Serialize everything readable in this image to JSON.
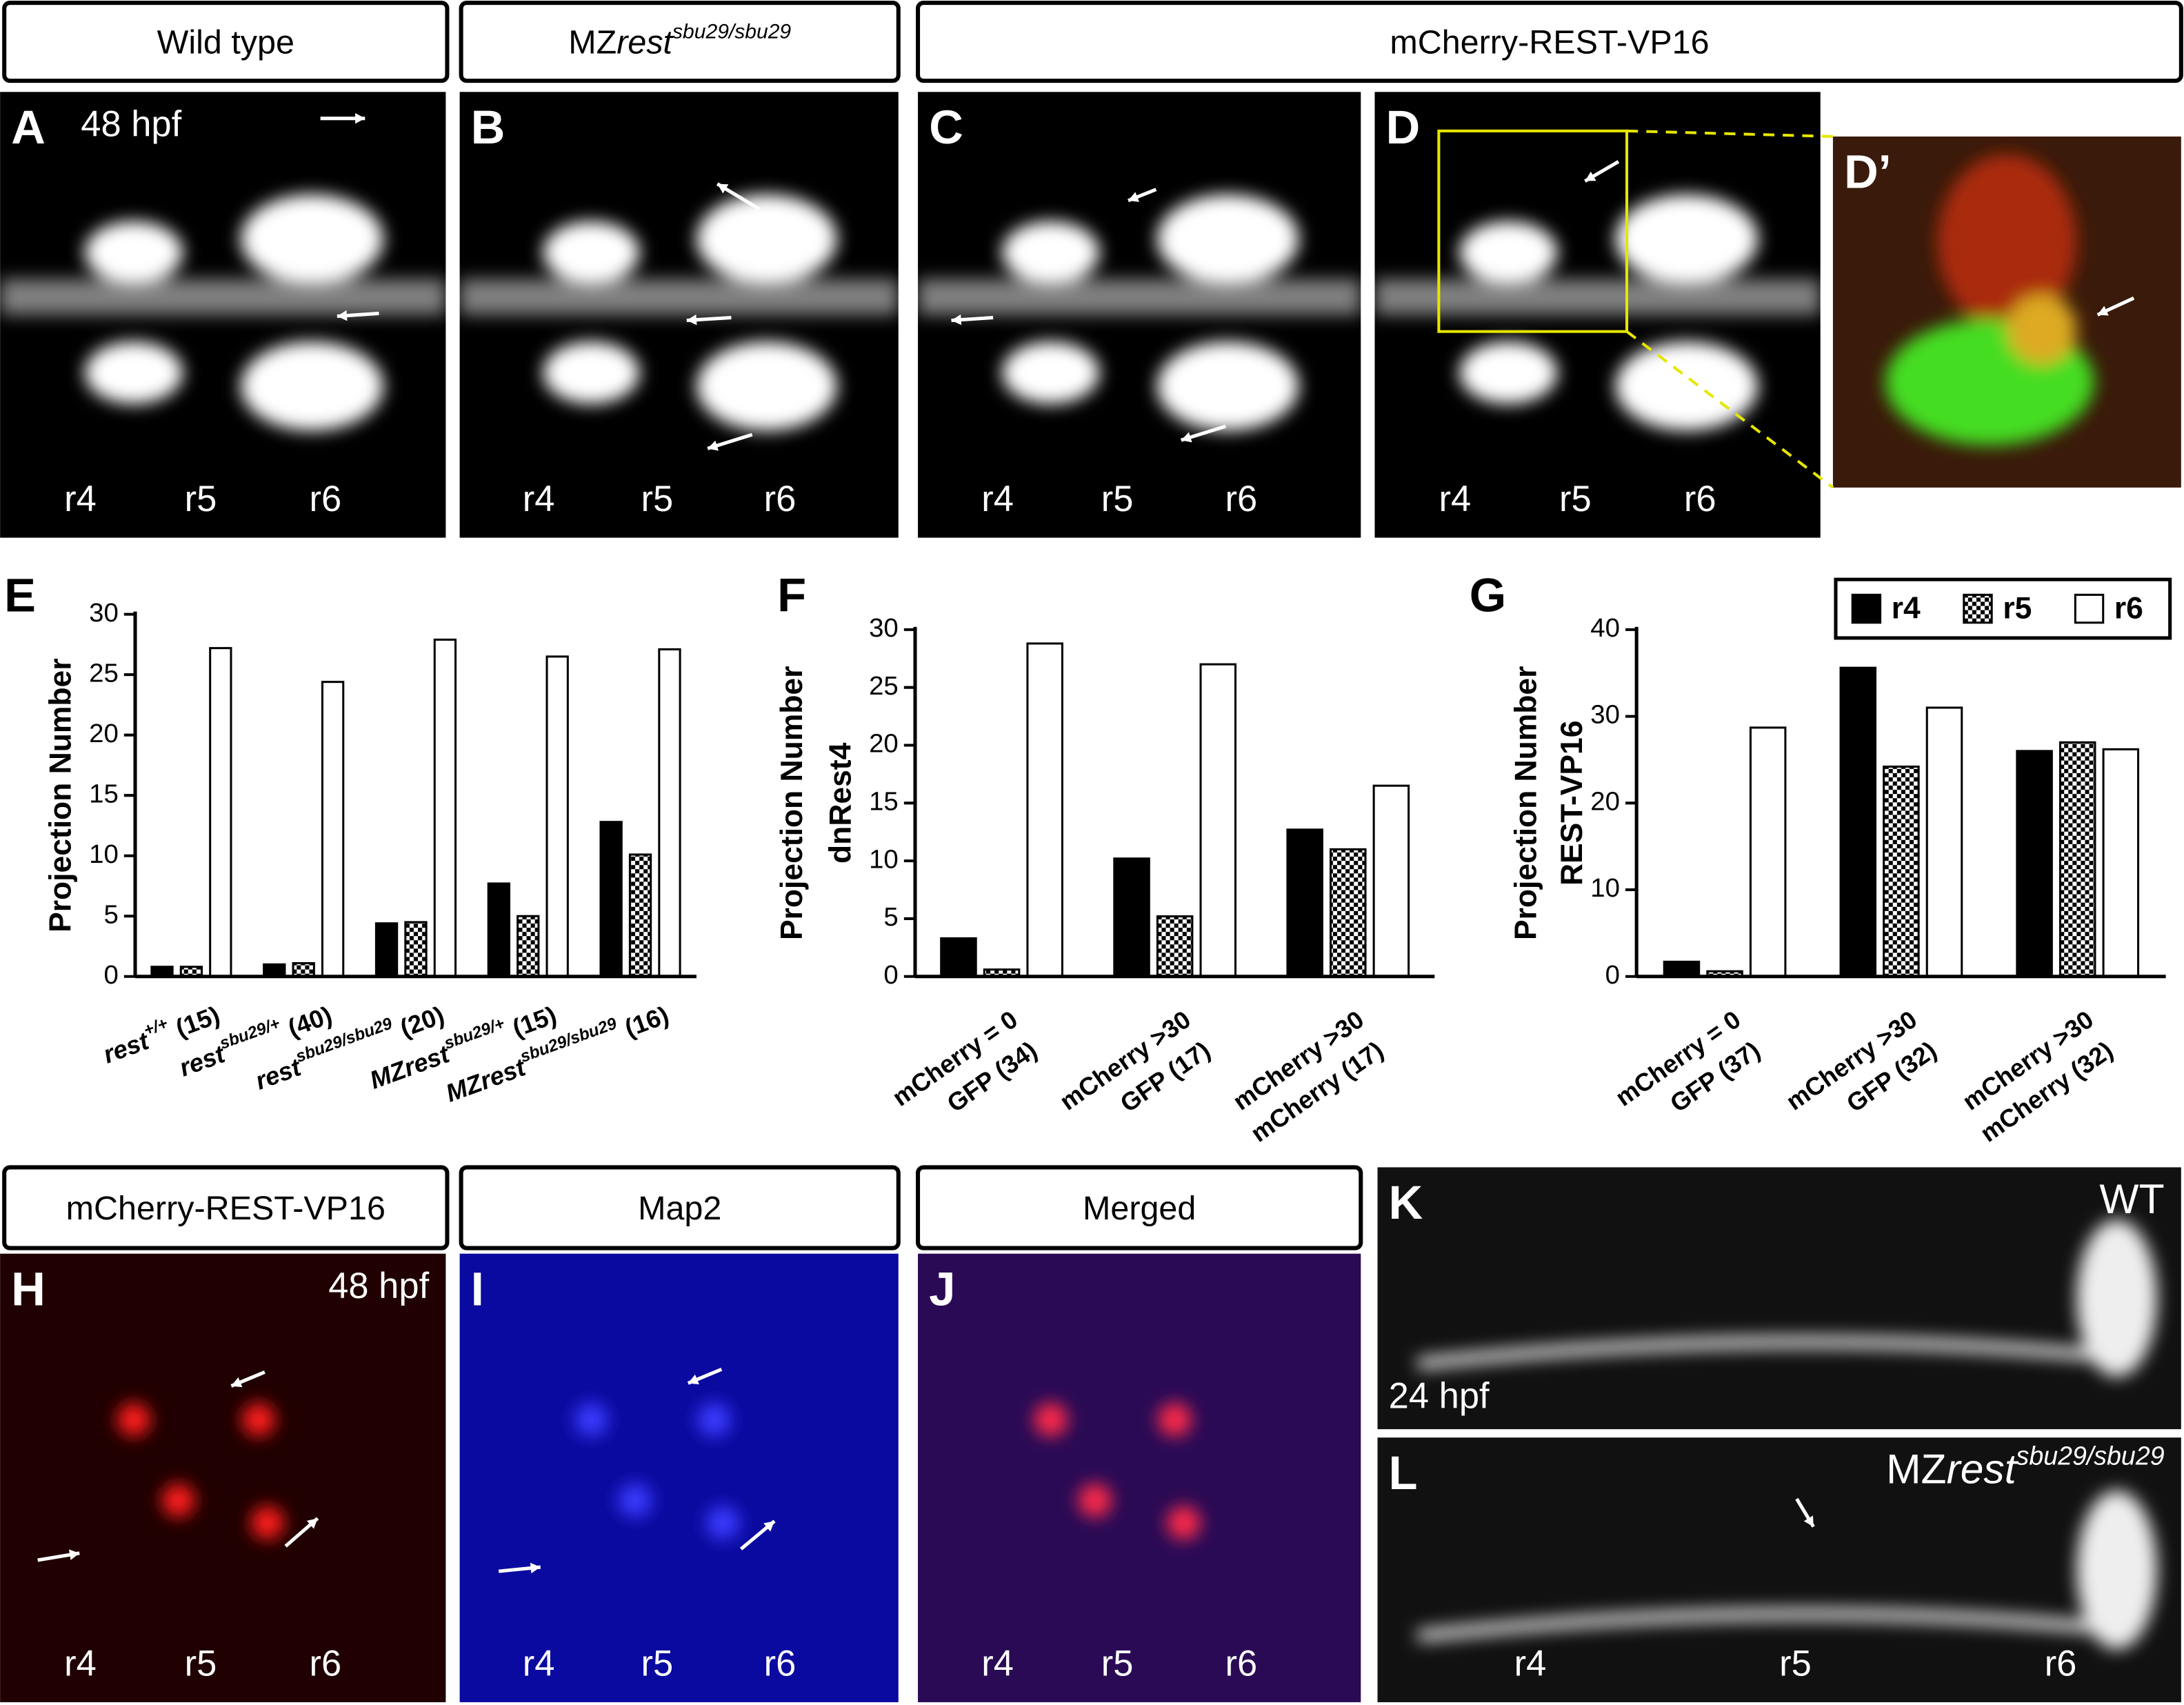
{
  "headers": [
    {
      "parts": [
        "Wild type"
      ]
    },
    {
      "parts": [
        "MZ",
        "rest",
        "sbu29/sbu29"
      ]
    },
    {
      "parts": [
        "mCherry-REST-VP16"
      ]
    },
    {
      "parts": [
        "mCherry-REST-VP16"
      ]
    },
    {
      "parts": [
        "Map2"
      ]
    },
    {
      "parts": [
        "Merged"
      ]
    }
  ],
  "panels": [
    {
      "letter": "A",
      "stage": "48 hpf",
      "regions": [
        "r4",
        "r5",
        "r6"
      ]
    },
    {
      "letter": "B",
      "regions": [
        "r4",
        "r5",
        "r6"
      ]
    },
    {
      "letter": "C",
      "regions": [
        "r4",
        "r5",
        "r6"
      ]
    },
    {
      "letter": "D",
      "regions": [
        "r4",
        "r5",
        "r6"
      ]
    },
    {
      "letter": "D’"
    },
    {
      "letter": "H",
      "stage": "48 hpf",
      "regions": [
        "r4",
        "r5",
        "r6"
      ]
    },
    {
      "letter": "I",
      "regions": [
        "r4",
        "r5",
        "r6"
      ]
    },
    {
      "letter": "J",
      "regions": [
        "r4",
        "r5",
        "r6"
      ]
    },
    {
      "letter": "K",
      "stage": "24 hpf",
      "genotype": [
        "WT"
      ]
    },
    {
      "letter": "L",
      "genotype": [
        "MZ",
        "rest",
        "sbu29/sbu29"
      ],
      "regions": [
        "r4",
        "r5",
        "r6"
      ]
    }
  ],
  "chart_data": [
    {
      "type": "bar",
      "label": "E",
      "ylabel": [
        "Projection Number"
      ],
      "category_format": "superscript",
      "categories": [
        [
          "rest",
          "+/+",
          " (15)"
        ],
        [
          "rest",
          "sbu29/+",
          " (40)"
        ],
        [
          "rest",
          "sbu29/sbu29",
          " (20)"
        ],
        [
          "MZrest",
          "sbu29/+",
          " (15)"
        ],
        [
          "MZrest",
          "sbu29/sbu29",
          "  (16)"
        ]
      ],
      "series": [
        {
          "name": "r4",
          "color": "#000000",
          "values": [
            0.8,
            1.0,
            4.4,
            7.7,
            12.8
          ]
        },
        {
          "name": "r5",
          "color": "#000000",
          "pattern": "checker",
          "values": [
            0.8,
            1.1,
            4.5,
            5.0,
            10.1
          ]
        },
        {
          "name": "r6",
          "color": "#ffffff",
          "values": [
            27.2,
            24.4,
            27.9,
            26.5,
            27.1
          ]
        }
      ],
      "ylim": [
        0,
        30
      ],
      "yticks": [
        0,
        5,
        10,
        15,
        20,
        25,
        30
      ]
    },
    {
      "type": "bar",
      "label": "F",
      "ylabel": [
        "Projection Number",
        "dnRest4"
      ],
      "category_format": "lines",
      "categories": [
        [
          "mCherry = 0",
          "GFP (34)"
        ],
        [
          "mCherry >30",
          "GFP (17)"
        ],
        [
          "mCherry >30",
          "mCherry (17)"
        ]
      ],
      "series": [
        {
          "name": "r4",
          "color": "#000000",
          "values": [
            3.3,
            10.2,
            12.7
          ]
        },
        {
          "name": "r5",
          "color": "#000000",
          "pattern": "checker",
          "values": [
            0.6,
            5.2,
            11.0
          ]
        },
        {
          "name": "r6",
          "color": "#ffffff",
          "values": [
            28.8,
            27.0,
            16.5
          ]
        }
      ],
      "ylim": [
        0,
        30
      ],
      "yticks": [
        0,
        5,
        10,
        15,
        20,
        25,
        30
      ]
    },
    {
      "type": "bar",
      "label": "G",
      "ylabel": [
        "Projection Number",
        "REST-VP16"
      ],
      "category_format": "lines",
      "legend": "top-right",
      "categories": [
        [
          "mCherry = 0",
          "GFP (37)"
        ],
        [
          "mCherry >30",
          "GFP (32)"
        ],
        [
          "mCherry >30",
          "mCherry (32)"
        ]
      ],
      "series": [
        {
          "name": "r4",
          "color": "#000000",
          "values": [
            1.7,
            35.6,
            26.0
          ]
        },
        {
          "name": "r5",
          "color": "#000000",
          "pattern": "checker",
          "values": [
            0.6,
            24.2,
            27.0
          ]
        },
        {
          "name": "r6",
          "color": "#ffffff",
          "values": [
            28.7,
            31.0,
            26.2
          ]
        }
      ],
      "ylim": [
        0,
        40
      ],
      "yticks": [
        0,
        10,
        20,
        30,
        40
      ]
    }
  ]
}
